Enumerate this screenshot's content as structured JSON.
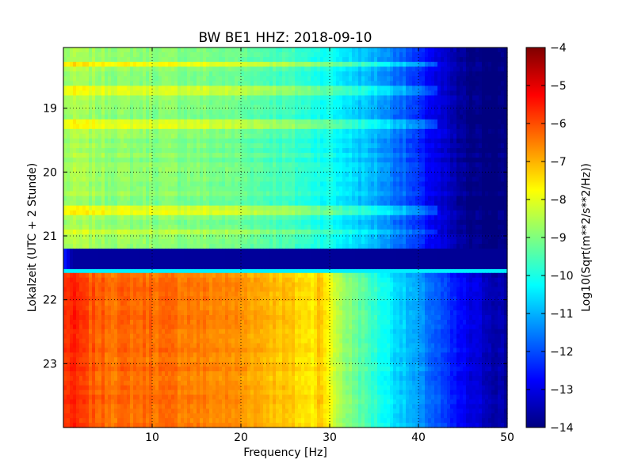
{
  "chart_data": {
    "type": "heatmap",
    "title": "BW BE1 HHZ: 2018-09-10",
    "xlabel": "Frequency [Hz]",
    "ylabel": "Lokalzeit (UTC + 2 Stunde)",
    "colorbar_label": "Log10(Sqrt(m**2/s**2/Hz))",
    "colormap": "jet",
    "xlim": [
      0,
      50
    ],
    "ylim": [
      24,
      18.05
    ],
    "y_inverted": true,
    "clim": [
      -14,
      -4
    ],
    "x_ticks": [
      10,
      20,
      30,
      40,
      50
    ],
    "x_tick_labels": [
      "10",
      "20",
      "30",
      "40",
      "50"
    ],
    "y_ticks": [
      19,
      20,
      21,
      22,
      23
    ],
    "y_tick_labels": [
      "19",
      "20",
      "21",
      "22",
      "23"
    ],
    "colorbar_ticks": [
      -4,
      -5,
      -6,
      -7,
      -8,
      -9,
      -10,
      -11,
      -12,
      -13,
      -14
    ],
    "colorbar_tick_labels": [
      "−4",
      "−5",
      "−6",
      "−7",
      "−8",
      "−9",
      "−10",
      "−11",
      "−12",
      "−13",
      "−14"
    ],
    "grid": true,
    "segments": [
      {
        "time_range": [
          18.05,
          21.2
        ],
        "frequency_hz": [
          0,
          1,
          3,
          5,
          10,
          15,
          20,
          25,
          28,
          30,
          32,
          35,
          38,
          40,
          42,
          44,
          46,
          50
        ],
        "log_psd": [
          -8.8,
          -8.6,
          -8.7,
          -8.8,
          -8.9,
          -9.0,
          -9.2,
          -9.6,
          -9.9,
          -10.1,
          -10.5,
          -11.0,
          -11.7,
          -12.4,
          -13.0,
          -13.6,
          -14.0,
          -14.0
        ]
      },
      {
        "time_range": [
          21.2,
          21.52
        ],
        "frequency_hz": [
          0,
          1,
          50
        ],
        "log_psd": [
          -12.3,
          -13.7,
          -13.8
        ]
      },
      {
        "time_range": [
          21.52,
          21.58
        ],
        "frequency_hz": [
          0,
          50
        ],
        "log_psd": [
          -10.4,
          -10.4
        ]
      },
      {
        "time_range": [
          21.58,
          24
        ],
        "frequency_hz": [
          0,
          1,
          3,
          5,
          10,
          15,
          20,
          25,
          28,
          29,
          30,
          32,
          35,
          38,
          40,
          42,
          44,
          46,
          50
        ],
        "log_psd": [
          -5.8,
          -5.6,
          -6.1,
          -6.3,
          -6.3,
          -6.5,
          -6.7,
          -7.2,
          -7.6,
          -7.0,
          -8.0,
          -8.9,
          -9.8,
          -10.7,
          -11.3,
          -11.9,
          -12.6,
          -13.1,
          -13.7
        ]
      }
    ],
    "horizontal_streaks": [
      {
        "time": 18.3,
        "delta": 1.0
      },
      {
        "time": 18.72,
        "delta": 0.8
      },
      {
        "time": 19.25,
        "delta": 0.9
      },
      {
        "time": 20.6,
        "delta": 0.9
      },
      {
        "time": 20.95,
        "delta": 0.6
      }
    ]
  },
  "colorbar_colors": [
    "#00007f",
    "#0000ff",
    "#007fff",
    "#00ffff",
    "#7fff7f",
    "#ffff00",
    "#ff7f00",
    "#ff0000",
    "#7f0000"
  ]
}
